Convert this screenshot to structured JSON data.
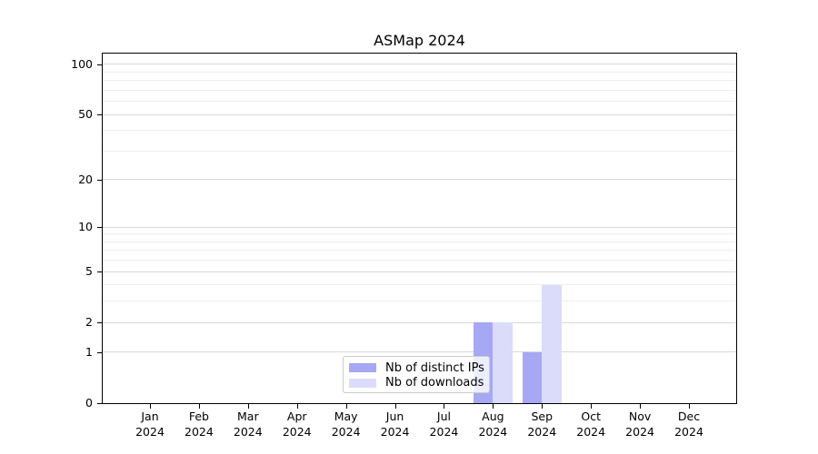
{
  "chart_data": {
    "type": "bar",
    "title": "ASMap 2024",
    "x": {
      "months": [
        "Jan",
        "Feb",
        "Mar",
        "Apr",
        "May",
        "Jun",
        "Jul",
        "Aug",
        "Sep",
        "Oct",
        "Nov",
        "Dec"
      ],
      "year": "2024"
    },
    "series": [
      {
        "name": "Nb of distinct IPs",
        "color": "#a6a8f3",
        "values": [
          0,
          0,
          0,
          0,
          0,
          0,
          0,
          2,
          1,
          0,
          0,
          0
        ]
      },
      {
        "name": "Nb of downloads",
        "color": "#dadcf9",
        "values": [
          0,
          0,
          0,
          0,
          0,
          0,
          0,
          2,
          4,
          0,
          0,
          0
        ]
      }
    ],
    "y_axis": {
      "scale": "symlog-log1p",
      "major_ticks": [
        0,
        1,
        2,
        5,
        10,
        20,
        50,
        100
      ],
      "minor_gridlines": [
        3,
        4,
        6,
        7,
        8,
        9,
        30,
        40,
        60,
        70,
        80,
        90
      ],
      "max": 116
    },
    "legend": {
      "position": "bottom-center",
      "entries": [
        "Nb of distinct IPs",
        "Nb of downloads"
      ]
    },
    "grid": "horizontal",
    "colors": {
      "major_grid": "#d8d8d8",
      "minor_grid": "#ededed",
      "axis": "#000000",
      "background": "#ffffff",
      "legend_border": "#cccccc"
    }
  }
}
